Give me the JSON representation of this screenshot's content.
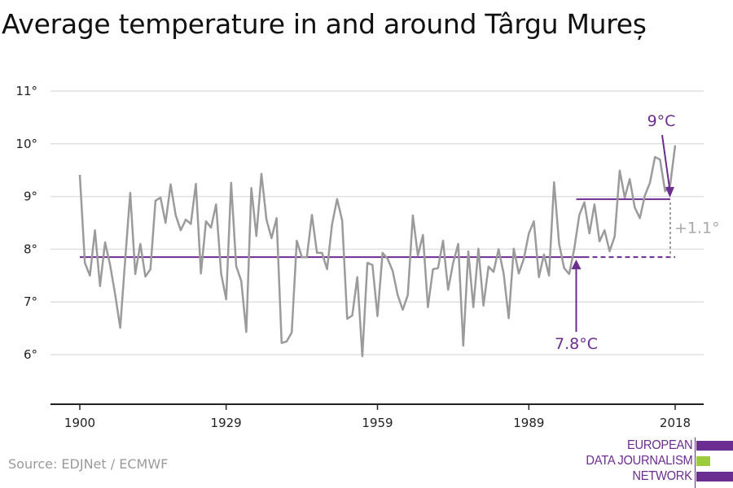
{
  "title": "Average temperature in and around Târgu Mureș",
  "source": "Source: EDJNet / ECMWF",
  "logo": {
    "lines": [
      "EUROPEAN",
      "DATA JOURNALISM",
      "NETWORK"
    ],
    "colors": {
      "purple": "#6b2d8f",
      "green": "#9ccc3c"
    }
  },
  "colors": {
    "series": "#9b9b9b",
    "accent": "#6b2d8f",
    "grid": "#e0e0e0",
    "axis": "#222222",
    "diff": "#9b9b9b"
  },
  "chart_data": {
    "type": "line",
    "title": "Average temperature in and around Târgu Mureș",
    "xlabel": "",
    "ylabel": "",
    "xlim": [
      1900,
      2018
    ],
    "ylim": [
      5,
      11
    ],
    "grid": true,
    "y_ticks": [
      6,
      7,
      8,
      9,
      10,
      11
    ],
    "y_tick_labels": [
      "6°",
      "7°",
      "8°",
      "9°",
      "10°",
      "11°"
    ],
    "x_ticks": [
      1900,
      1929,
      1959,
      1989,
      2018
    ],
    "x_tick_labels": [
      "1900",
      "1929",
      "1959",
      "1989",
      "2018"
    ],
    "series": [
      {
        "name": "Average temperature",
        "x_start": 1900,
        "values": [
          9.41,
          7.74,
          7.5,
          8.36,
          7.3,
          8.13,
          7.7,
          7.14,
          6.51,
          7.82,
          9.07,
          7.53,
          8.1,
          7.48,
          7.62,
          8.92,
          8.98,
          8.5,
          9.23,
          8.65,
          8.36,
          8.56,
          8.48,
          9.24,
          7.54,
          8.53,
          8.41,
          8.85,
          7.54,
          7.05,
          9.26,
          7.68,
          7.4,
          6.43,
          9.16,
          8.25,
          9.43,
          8.56,
          8.21,
          8.59,
          6.22,
          6.25,
          6.42,
          8.16,
          7.85,
          7.85,
          8.65,
          7.93,
          7.93,
          7.62,
          8.47,
          8.95,
          8.55,
          6.68,
          6.74,
          7.47,
          5.97,
          7.74,
          7.7,
          6.73,
          7.93,
          7.82,
          7.59,
          7.13,
          6.85,
          7.13,
          8.64,
          7.88,
          8.27,
          6.9,
          7.62,
          7.64,
          8.16,
          7.23,
          7.74,
          8.1,
          6.17,
          7.96,
          6.9,
          8.01,
          6.93,
          7.67,
          7.57,
          8.0,
          7.54,
          6.69,
          8.01,
          7.54,
          7.82,
          8.3,
          8.53,
          7.47,
          7.9,
          7.5,
          9.27,
          8.1,
          7.64,
          7.53,
          8.01,
          8.65,
          8.89,
          8.3,
          8.85,
          8.15,
          8.36,
          7.96,
          8.24,
          9.49,
          8.98,
          9.33,
          8.79,
          8.59,
          9.02,
          9.26,
          9.75,
          9.7,
          9.1,
          9.21,
          9.97
        ]
      }
    ],
    "reference_lines": [
      {
        "name": "baseline-average",
        "value": 7.85,
        "x_from": 1900,
        "x_to": 2018,
        "solid_to": 2000,
        "label": "7.8°C",
        "label_year": 2000
      },
      {
        "name": "recent-average",
        "value": 8.95,
        "x_from": 2000,
        "x_to": 2018,
        "label": "9°C",
        "label_year": 2018
      }
    ],
    "difference": {
      "label": "+1.1°",
      "year": 2018
    }
  }
}
